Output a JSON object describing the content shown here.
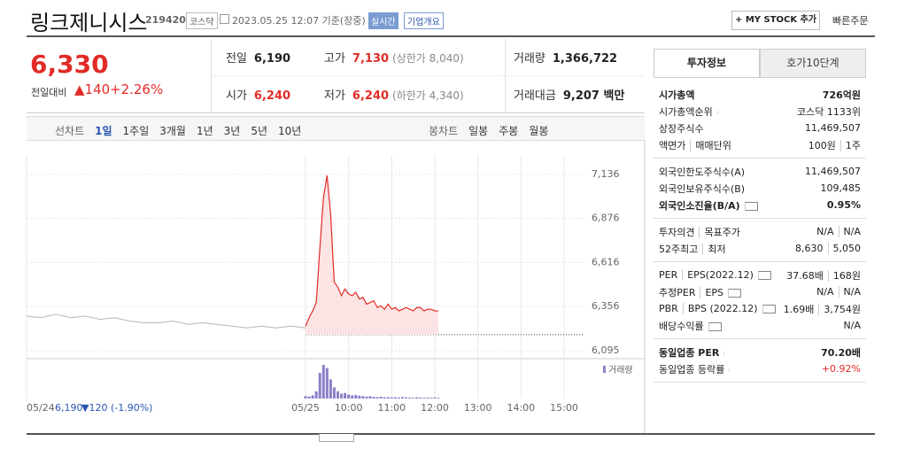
{
  "header": {
    "title": "링크제니시스",
    "code": "219420",
    "market": "코스닥",
    "timestamp": "2023.05.25 12:07 기준(장중)",
    "realtime": "실시간",
    "company_menu": "기업개요",
    "my_stock": "+ MY STOCK 추가",
    "quick_order": "빠른주문"
  },
  "price": {
    "current": "6,330",
    "change_label": "전일대비",
    "change": "▲140",
    "change_rate": "+2.26%"
  },
  "quote": {
    "rows": [
      [
        {
          "label": "전일",
          "value": "6,190"
        },
        {
          "label": "고가",
          "value": "7,130",
          "note": "(상한가 8,040)",
          "color": "#e12b26"
        },
        {
          "label": "거래량",
          "value": "1,366,722"
        }
      ],
      [
        {
          "label": "시가",
          "value": "6,240",
          "color": "#e12b26"
        },
        {
          "label": "저가",
          "value": "6,240",
          "note": "(하한가 4,340)",
          "color": "#e12b26"
        },
        {
          "label": "거래대금",
          "value": "9,207 백만"
        }
      ]
    ]
  },
  "chart_tabs": {
    "line_label": "선차트",
    "line_periods": [
      "1일",
      "1주일",
      "3개월",
      "1년",
      "3년",
      "5년",
      "10년"
    ],
    "active": 0,
    "candle_label": "봉차트",
    "candle_periods": [
      "일봉",
      "주봉",
      "월봉"
    ]
  },
  "chart": {
    "ylim": [
      6048,
      7251
    ],
    "yticks": [
      {
        "value": 6095,
        "label": "6,095"
      },
      {
        "value": 6356,
        "label": "6,356"
      },
      {
        "value": 6616,
        "label": "6,616"
      },
      {
        "value": 6876,
        "label": "6,876"
      },
      {
        "value": 7136,
        "label": "7,136"
      }
    ],
    "xticks": [
      {
        "value": "09:00",
        "label": "05/25"
      },
      "10:00",
      "11:00",
      "12:00",
      "13:00",
      "14:00",
      "15:00"
    ],
    "prev_close": 6190,
    "line_color": "#e12b26",
    "fill_color": "#fde4e4",
    "prev_color": "#b5b5b5",
    "volume_color": "#8c7fc9",
    "prev_day": {
      "date": "05/24",
      "close": "6,190",
      "change": "▼120 (-1.90%)",
      "values": [
        6300,
        6290,
        6310,
        6290,
        6300,
        6280,
        6290,
        6270,
        6260,
        6260,
        6270,
        6250,
        6260,
        6250,
        6240,
        6230,
        6240,
        6230,
        6240,
        6230
      ]
    },
    "today": {
      "x": [
        "09:00",
        "09:05",
        "09:10",
        "09:15",
        "09:20",
        "09:25",
        "09:30",
        "09:35",
        "09:40",
        "09:45",
        "09:50",
        "09:55",
        "10:00",
        "10:05",
        "10:10",
        "10:15",
        "10:20",
        "10:25",
        "10:30",
        "10:35",
        "10:40",
        "10:45",
        "10:50",
        "10:55",
        "11:00",
        "11:05",
        "11:10",
        "11:15",
        "11:20",
        "11:25",
        "11:30",
        "11:35",
        "11:40",
        "11:45",
        "11:50",
        "11:55",
        "12:00",
        "12:05"
      ],
      "values": [
        6240,
        6290,
        6330,
        6380,
        6700,
        7000,
        7130,
        6900,
        6500,
        6470,
        6420,
        6460,
        6430,
        6420,
        6440,
        6400,
        6410,
        6370,
        6380,
        6390,
        6350,
        6360,
        6340,
        6370,
        6340,
        6350,
        6330,
        6340,
        6350,
        6340,
        6330,
        6350,
        6350,
        6330,
        6340,
        6340,
        6330,
        6330
      ]
    },
    "volume": {
      "name": "거래량",
      "values": [
        15000,
        12000,
        20000,
        45000,
        160000,
        210000,
        190000,
        120000,
        70000,
        45000,
        30000,
        35000,
        25000,
        20000,
        22000,
        18000,
        15000,
        12000,
        14000,
        10000,
        9000,
        11000,
        8000,
        9000,
        7000,
        8000,
        6000,
        9000,
        7000,
        6000,
        5000,
        8000,
        6000,
        5000,
        6000,
        5000,
        7000,
        4000
      ]
    }
  },
  "info_panel": {
    "tabs": [
      "투자정보",
      "호가10단계"
    ],
    "active": 0,
    "sections": [
      {
        "rows": [
          {
            "labels": [
              "시가총액"
            ],
            "values": [
              "726억원"
            ],
            "bold": true
          },
          {
            "labels": [
              "시가총액순위"
            ],
            "values": [
              "코스닥 1133위"
            ],
            "arrow": true
          },
          {
            "labels": [
              "상장주식수"
            ],
            "values": [
              "11,469,507"
            ]
          },
          {
            "labels": [
              "액면가",
              "매매단위"
            ],
            "values": [
              "100원",
              "1주"
            ]
          }
        ]
      },
      {
        "rows": [
          {
            "labels": [
              "외국인한도주식수(A)"
            ],
            "values": [
              "11,469,507"
            ]
          },
          {
            "labels": [
              "외국인보유주식수(B)"
            ],
            "values": [
              "109,485"
            ]
          },
          {
            "labels": [
              "외국인소진율(B/A)"
            ],
            "values": [
              "0.95%"
            ],
            "bold": true,
            "help": true
          }
        ]
      },
      {
        "rows": [
          {
            "labels": [
              "투자의견",
              "목표주가"
            ],
            "values": [
              "N/A",
              "N/A"
            ]
          },
          {
            "labels": [
              "52주최고",
              "최저"
            ],
            "values": [
              "8,630",
              "5,050"
            ]
          }
        ]
      },
      {
        "rows": [
          {
            "labels": [
              "PER",
              "EPS(2022.12)"
            ],
            "values": [
              "37.68배",
              "168원"
            ],
            "help": true
          },
          {
            "labels": [
              "추정PER",
              "EPS"
            ],
            "values": [
              "N/A",
              "N/A"
            ],
            "help": true
          },
          {
            "labels": [
              "PBR",
              "BPS (2022.12)"
            ],
            "values": [
              "1.69배",
              "3,754원"
            ],
            "help": true
          },
          {
            "labels": [
              "배당수익률"
            ],
            "values": [
              "N/A"
            ],
            "help": true
          }
        ]
      },
      {
        "rows": [
          {
            "labels": [
              "동일업종 PER"
            ],
            "values": [
              "70.20배"
            ],
            "bold": true,
            "arrow": true
          },
          {
            "labels": [
              "동일업종 등락률"
            ],
            "values": [
              "+0.92%"
            ],
            "arrow": true,
            "color": "#e12b26"
          }
        ]
      }
    ]
  }
}
